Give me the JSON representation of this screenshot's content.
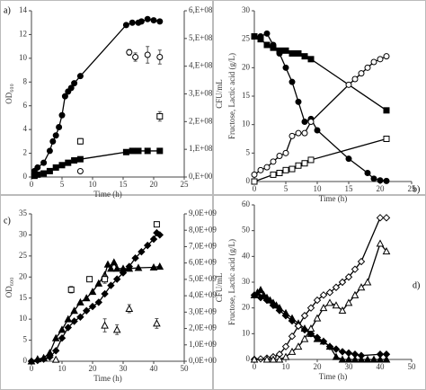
{
  "chart_data": [
    {
      "type": "line",
      "label": "a)",
      "xlabel": "Time (h)",
      "ylabel": "OD₆₀₀",
      "y2label": "CFU/mL",
      "xlim": [
        0,
        25
      ],
      "xticks": [
        0,
        5,
        10,
        15,
        20,
        25
      ],
      "ylim": [
        0,
        14
      ],
      "yticks": [
        0,
        2,
        4,
        6,
        8,
        10,
        12,
        14
      ],
      "y2lim": [
        0,
        600000000
      ],
      "y2ticks": [
        {
          "value": 0,
          "label": "0,E+00"
        },
        {
          "value": 100000000,
          "label": "1,E+08"
        },
        {
          "value": 200000000,
          "label": "2,E+08"
        },
        {
          "value": 300000000,
          "label": "3,E+08"
        },
        {
          "value": 400000000,
          "label": "4,E+08"
        },
        {
          "value": 500000000,
          "label": "5,E+08"
        },
        {
          "value": 600000000,
          "label": "6,E+08"
        }
      ],
      "series": [
        {
          "marker": "circle",
          "filled": true,
          "line": true,
          "color": "#000000",
          "x": [
            0.5,
            1,
            2,
            3,
            3.5,
            4,
            4.5,
            5,
            5.5,
            6,
            6.5,
            7,
            8,
            15.5,
            16.5,
            17.5,
            18,
            19,
            20,
            21
          ],
          "values": [
            0.5,
            0.8,
            1.2,
            2.2,
            3.0,
            3.5,
            4.2,
            5.2,
            6.8,
            7.2,
            7.5,
            7.9,
            8.5,
            12.8,
            13.0,
            13.0,
            13.1,
            13.3,
            13.2,
            13.1
          ]
        },
        {
          "marker": "square",
          "filled": true,
          "line": true,
          "color": "#000000",
          "x": [
            0.5,
            1,
            2,
            3,
            4,
            5,
            6,
            7,
            8,
            15.5,
            16.5,
            17.5,
            19,
            21
          ],
          "values": [
            0.1,
            0.2,
            0.3,
            0.5,
            0.8,
            1.0,
            1.2,
            1.4,
            1.5,
            2.1,
            2.2,
            2.2,
            2.2,
            2.2
          ]
        },
        {
          "marker": "circle",
          "filled": false,
          "line": false,
          "axis": "y2",
          "color": "#000000",
          "x": [
            8,
            16,
            17,
            19,
            21
          ],
          "values": [
            21000000,
            450000000,
            433000000,
            441000000,
            433000000
          ],
          "errors": [
            3000000,
            10000000,
            15000000,
            30000000,
            25000000
          ]
        },
        {
          "marker": "square",
          "filled": false,
          "line": false,
          "axis": "y2",
          "color": "#000000",
          "x": [
            8,
            21
          ],
          "values": [
            129000000,
            219000000
          ],
          "errors": [
            10000000,
            17000000
          ]
        }
      ]
    },
    {
      "type": "line",
      "label": "b)",
      "xlabel": "Time (h)",
      "ylabel": "Fructose, Lactic acid (g/L)",
      "xlim": [
        0,
        25
      ],
      "xticks": [
        0,
        5,
        10,
        15,
        20,
        25
      ],
      "ylim": [
        0,
        30
      ],
      "yticks": [
        0,
        5,
        10,
        15,
        20,
        25,
        30
      ],
      "series": [
        {
          "marker": "square",
          "filled": true,
          "line": true,
          "color": "#000000",
          "x": [
            0,
            1,
            2,
            3,
            4,
            5,
            6,
            7,
            8,
            9,
            21
          ],
          "values": [
            25.5,
            25,
            24,
            23.5,
            23,
            23,
            22.5,
            22.5,
            22,
            21.5,
            12.5
          ]
        },
        {
          "marker": "circle",
          "filled": true,
          "line": true,
          "color": "#000000",
          "x": [
            0,
            1,
            2,
            3,
            4,
            5,
            6,
            7,
            8,
            9,
            10,
            15,
            18,
            19,
            20,
            21
          ],
          "values": [
            25.5,
            25.5,
            26,
            24,
            22.5,
            20,
            17.5,
            14,
            10.5,
            11,
            9,
            4,
            1.5,
            0.5,
            0.2,
            0.1
          ]
        },
        {
          "marker": "circle",
          "filled": false,
          "line": true,
          "color": "#000000",
          "x": [
            0,
            1,
            2,
            3,
            4,
            5,
            6,
            7,
            8,
            9,
            15,
            16,
            17,
            18,
            19,
            20,
            21
          ],
          "values": [
            1.2,
            2,
            2.5,
            3.5,
            4.5,
            5,
            8,
            8.5,
            8.5,
            10.5,
            17,
            18,
            19,
            20,
            21,
            21.5,
            22
          ]
        },
        {
          "marker": "square",
          "filled": false,
          "line": true,
          "color": "#000000",
          "x": [
            0,
            3,
            4,
            5,
            6,
            7,
            8,
            9,
            21
          ],
          "values": [
            0,
            1.2,
            1.5,
            2,
            2.2,
            2.8,
            3.2,
            3.8,
            7.5
          ]
        }
      ]
    },
    {
      "type": "line",
      "label": "c)",
      "xlabel": "Time (h)",
      "ylabel": "OD₆₀₀",
      "y2label": "CFU/mL",
      "xlim": [
        0,
        50
      ],
      "xticks": [
        0,
        10,
        20,
        30,
        40,
        50
      ],
      "ylim": [
        0,
        35
      ],
      "yticks": [
        0,
        5,
        10,
        15,
        20,
        25,
        30,
        35
      ],
      "y2lim": [
        0,
        9000000000
      ],
      "y2ticks": [
        {
          "value": 0,
          "label": "0,0E+00"
        },
        {
          "value": 1000000000,
          "label": "1,0E+09"
        },
        {
          "value": 2000000000,
          "label": "2,0E+09"
        },
        {
          "value": 3000000000,
          "label": "3,0E+09"
        },
        {
          "value": 4000000000,
          "label": "4,0E+09"
        },
        {
          "value": 5000000000,
          "label": "5,0E+09"
        },
        {
          "value": 6000000000,
          "label": "6,0E+09"
        },
        {
          "value": 7000000000,
          "label": "7,0E+09"
        },
        {
          "value": 8000000000,
          "label": "8,0E+09"
        },
        {
          "value": 9000000000,
          "label": "9,0E+09"
        }
      ],
      "series": [
        {
          "marker": "diamond",
          "filled": true,
          "line": true,
          "color": "#000000",
          "x": [
            0,
            2,
            4,
            6,
            8,
            10,
            12,
            14,
            16,
            18,
            20,
            22,
            24,
            26,
            28,
            30,
            32,
            34,
            36,
            38,
            40,
            41,
            42
          ],
          "values": [
            0,
            0.2,
            0.5,
            1,
            2.5,
            5.5,
            8,
            9.5,
            10.5,
            12,
            13,
            14,
            16,
            18,
            19.5,
            21,
            22.5,
            24.5,
            26,
            27.5,
            29,
            30.5,
            30
          ]
        },
        {
          "marker": "triangle",
          "filled": true,
          "line": true,
          "color": "#000000",
          "x": [
            0,
            2,
            4,
            6,
            8,
            10,
            12,
            14,
            16,
            18,
            20,
            22,
            24,
            25,
            26,
            27,
            28,
            30,
            32,
            35,
            40,
            42
          ],
          "values": [
            0,
            0.5,
            0.8,
            2,
            5.5,
            7.5,
            10,
            12,
            14,
            15,
            16.5,
            18.5,
            20.5,
            23,
            22,
            23.5,
            22,
            22,
            22,
            22.2,
            22.3,
            22.5
          ]
        },
        {
          "marker": "square",
          "filled": false,
          "line": false,
          "axis": "y2",
          "color": "#000000",
          "x": [
            13,
            19,
            24,
            41
          ],
          "values": [
            4370000000,
            5010000000,
            5010000000,
            8360000000
          ],
          "errors": [
            200000000,
            150000000,
            250000000,
            100000000
          ]
        },
        {
          "marker": "triangle",
          "filled": false,
          "line": false,
          "axis": "y2",
          "color": "#000000",
          "x": [
            8,
            24,
            28,
            32,
            41
          ],
          "values": [
            100000000,
            2190000000,
            1930000000,
            3210000000,
            2310000000
          ],
          "errors": [
            50000000,
            400000000,
            300000000,
            250000000,
            300000000
          ]
        }
      ]
    },
    {
      "type": "line",
      "label": "d)",
      "xlabel": "Time (h)",
      "ylabel": "Fructose, Lactic acid (g/L)",
      "xlim": [
        0,
        50
      ],
      "xticks": [
        0,
        10,
        20,
        30,
        40,
        50
      ],
      "ylim": [
        0,
        60
      ],
      "yticks": [
        0,
        10,
        20,
        30,
        40,
        50,
        60
      ],
      "series": [
        {
          "marker": "triangle",
          "filled": true,
          "line": true,
          "color": "#000000",
          "x": [
            0,
            1,
            2,
            3,
            4,
            5,
            6,
            7,
            8,
            10,
            12,
            14,
            16,
            18,
            20,
            22,
            24,
            26,
            28,
            30,
            32,
            34,
            36,
            38,
            40,
            42
          ],
          "values": [
            25,
            26,
            27,
            25,
            24,
            23,
            22,
            21,
            20,
            18,
            16,
            14,
            12,
            10,
            8,
            7,
            5,
            1,
            0,
            0,
            0,
            0,
            0,
            0,
            0,
            0
          ]
        },
        {
          "marker": "diamond",
          "filled": true,
          "line": true,
          "color": "#000000",
          "x": [
            0,
            2,
            4,
            6,
            8,
            10,
            12,
            14,
            16,
            18,
            20,
            22,
            24,
            26,
            28,
            30,
            32,
            34,
            40,
            42
          ],
          "values": [
            25,
            24,
            23,
            21,
            19,
            17,
            15,
            13,
            11.5,
            10,
            8.5,
            7,
            5,
            4,
            3,
            2.5,
            2,
            1.5,
            2,
            2
          ]
        },
        {
          "marker": "diamond",
          "filled": false,
          "line": true,
          "color": "#000000",
          "x": [
            0,
            2,
            4,
            6,
            8,
            10,
            12,
            14,
            16,
            18,
            20,
            22,
            24,
            26,
            28,
            30,
            32,
            34,
            40,
            42
          ],
          "values": [
            0,
            0.2,
            0.5,
            1,
            2,
            5,
            9,
            13,
            17,
            20,
            23,
            25,
            26,
            28,
            30,
            32,
            35,
            38,
            55,
            55
          ]
        },
        {
          "marker": "triangle",
          "filled": false,
          "line": true,
          "color": "#000000",
          "x": [
            0,
            4,
            6,
            8,
            10,
            12,
            14,
            16,
            18,
            20,
            22,
            24,
            26,
            28,
            30,
            32,
            34,
            36,
            40,
            42
          ],
          "values": [
            0,
            0,
            0,
            0,
            1,
            3,
            5,
            8,
            12,
            16,
            20,
            22,
            21,
            19,
            22,
            25,
            28,
            30,
            45,
            42
          ]
        }
      ]
    }
  ]
}
